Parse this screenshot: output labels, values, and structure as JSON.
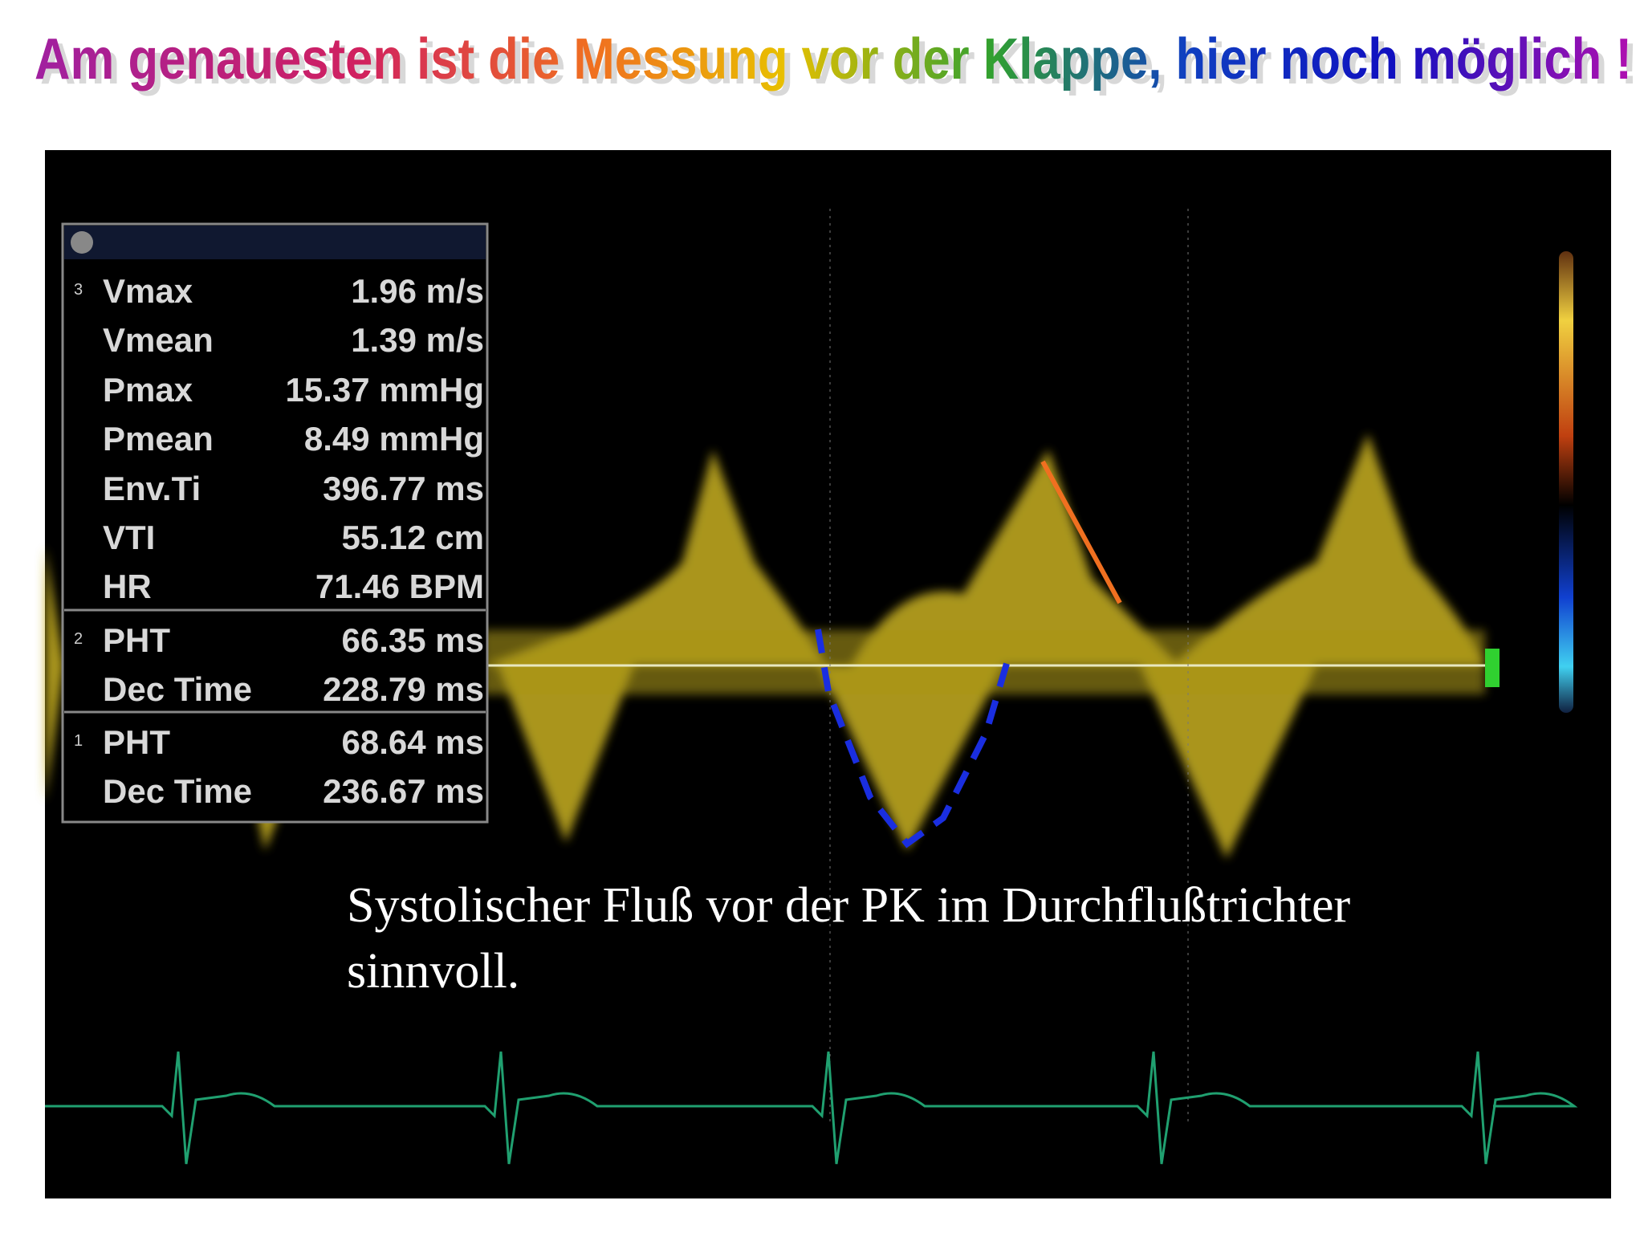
{
  "title": "Am genauesten ist die Messung vor der Klappe, hier noch möglich !",
  "panel": {
    "groups": [
      {
        "index": "3",
        "rows": [
          [
            "Vmax",
            "1.96 m/s"
          ],
          [
            "Vmean",
            "1.39 m/s"
          ],
          [
            "Pmax",
            "15.37 mmHg"
          ],
          [
            "Pmean",
            "8.49 mmHg"
          ],
          [
            "Env.Ti",
            "396.77 ms"
          ],
          [
            "VTI",
            "55.12 cm"
          ],
          [
            "HR",
            "71.46 BPM"
          ]
        ]
      },
      {
        "index": "2",
        "rows": [
          [
            "PHT",
            "66.35 ms"
          ],
          [
            "Dec Time",
            "228.79 ms"
          ]
        ]
      },
      {
        "index": "1",
        "rows": [
          [
            "PHT",
            "68.64 ms"
          ],
          [
            "Dec Time",
            "236.67 ms"
          ]
        ]
      }
    ]
  },
  "caption": [
    "Systolischer Fluß vor der PK im Durchflußtrichter",
    "sinnvoll."
  ]
}
